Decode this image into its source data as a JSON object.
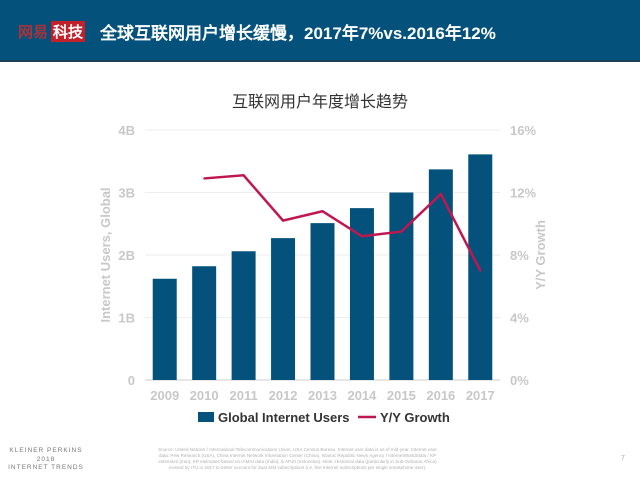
{
  "header": {
    "logo_part1": "网易",
    "logo_part2": "科技",
    "title": "全球互联网用户增长缓慢，2017年7%vs.2016年12%"
  },
  "chart_data": {
    "type": "bar+line",
    "title": "互联网用户年度增长趋势",
    "categories": [
      "2009",
      "2010",
      "2011",
      "2012",
      "2013",
      "2014",
      "2015",
      "2016",
      "2017"
    ],
    "series": [
      {
        "name": "Global Internet Users",
        "type": "bar",
        "axis": "left",
        "unit": "B",
        "color": "#04527c",
        "values": [
          1.62,
          1.82,
          2.06,
          2.27,
          2.51,
          2.75,
          3.0,
          3.37,
          3.61
        ]
      },
      {
        "name": "Y/Y Growth",
        "type": "line",
        "axis": "right",
        "unit": "%",
        "color": "#c0174f",
        "values": [
          null,
          12.9,
          13.1,
          10.2,
          10.8,
          9.2,
          9.5,
          11.9,
          7.0
        ]
      }
    ],
    "ylabel": "Internet Users, Global",
    "y2label": "Y/Y Growth",
    "ylim": [
      0,
      4
    ],
    "y2lim": [
      0,
      16
    ],
    "yticks": [
      "0",
      "1B",
      "2B",
      "3B",
      "4B"
    ],
    "y2ticks": [
      "0%",
      "4%",
      "8%",
      "12%",
      "16%"
    ],
    "grid": true,
    "legend_position": "bottom"
  },
  "footer": {
    "brand_line1": "KLEINER PERKINS",
    "brand_line2": "2018",
    "brand_line3": "INTERNET TRENDS",
    "source": "Source: United Nations / International Telecommunications Union, USA Census Bureau. Internet user data is as of mid-year. Internet user data: Pew Research (USA), China Internet Network Information Center (China), Islamic Republic News Agency / InternetWorldStats / KP estimates (Iran), KP estimates based on IAMAI data (India), & APJII (Indonesia). Note: Historical data (particularly in Sub-Saharan Africa) revised by ITU in 2017 to better account for dual SIM subscriptions (i.e. five Internet subscriptions per single smartphone user).",
    "page": "7"
  }
}
